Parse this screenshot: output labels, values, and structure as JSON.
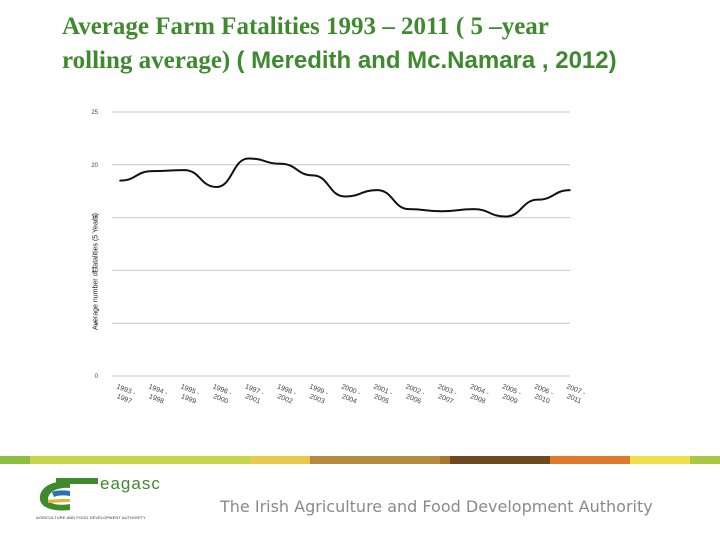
{
  "slide": {
    "title_line1": "Average Farm Fatalities 1993 – 2011 ( 5 –year",
    "title_line2_a": "rolling average) ",
    "title_line2_b": " ( Meredith and Mc.Namara , 2012)"
  },
  "chart_data": {
    "type": "line",
    "title": "",
    "xlabel": "",
    "ylabel": "Average number of fatalities (5 Years)",
    "ylim": [
      0,
      25
    ],
    "yticks": [
      "0",
      "5",
      "10",
      "15",
      "20",
      "25"
    ],
    "grid": true,
    "categories": [
      "1993 - 1997",
      "1994 - 1998",
      "1995 - 1999",
      "1996 - 2000",
      "1997 - 2001",
      "1998 - 2002",
      "1999 - 2003",
      "2000 - 2004",
      "2001 - 2005",
      "2002 - 2006",
      "2003 - 2007",
      "2004 - 2008",
      "2005 - 2009",
      "2006 - 2010",
      "2007 - 2011"
    ],
    "values": [
      18.5,
      19.4,
      19.5,
      17.9,
      20.6,
      20.1,
      19.0,
      17.0,
      17.6,
      15.8,
      15.6,
      15.8,
      15.1,
      16.7,
      17.6
    ],
    "color": "#111111"
  },
  "stripe_colors": [
    "#8cbf3f",
    "#c7d54a",
    "#e7c94c",
    "#b58a3c",
    "#a9742c",
    "#6e4a1e",
    "#e07a2a",
    "#efe04a",
    "#a8c742"
  ],
  "footer": {
    "logo_word": "eagasc",
    "logo_tagline": "AGRICULTURE AND FOOD DEVELOPMENT AUTHORITY",
    "authority_text": "The Irish Agriculture and Food Development Authority"
  }
}
